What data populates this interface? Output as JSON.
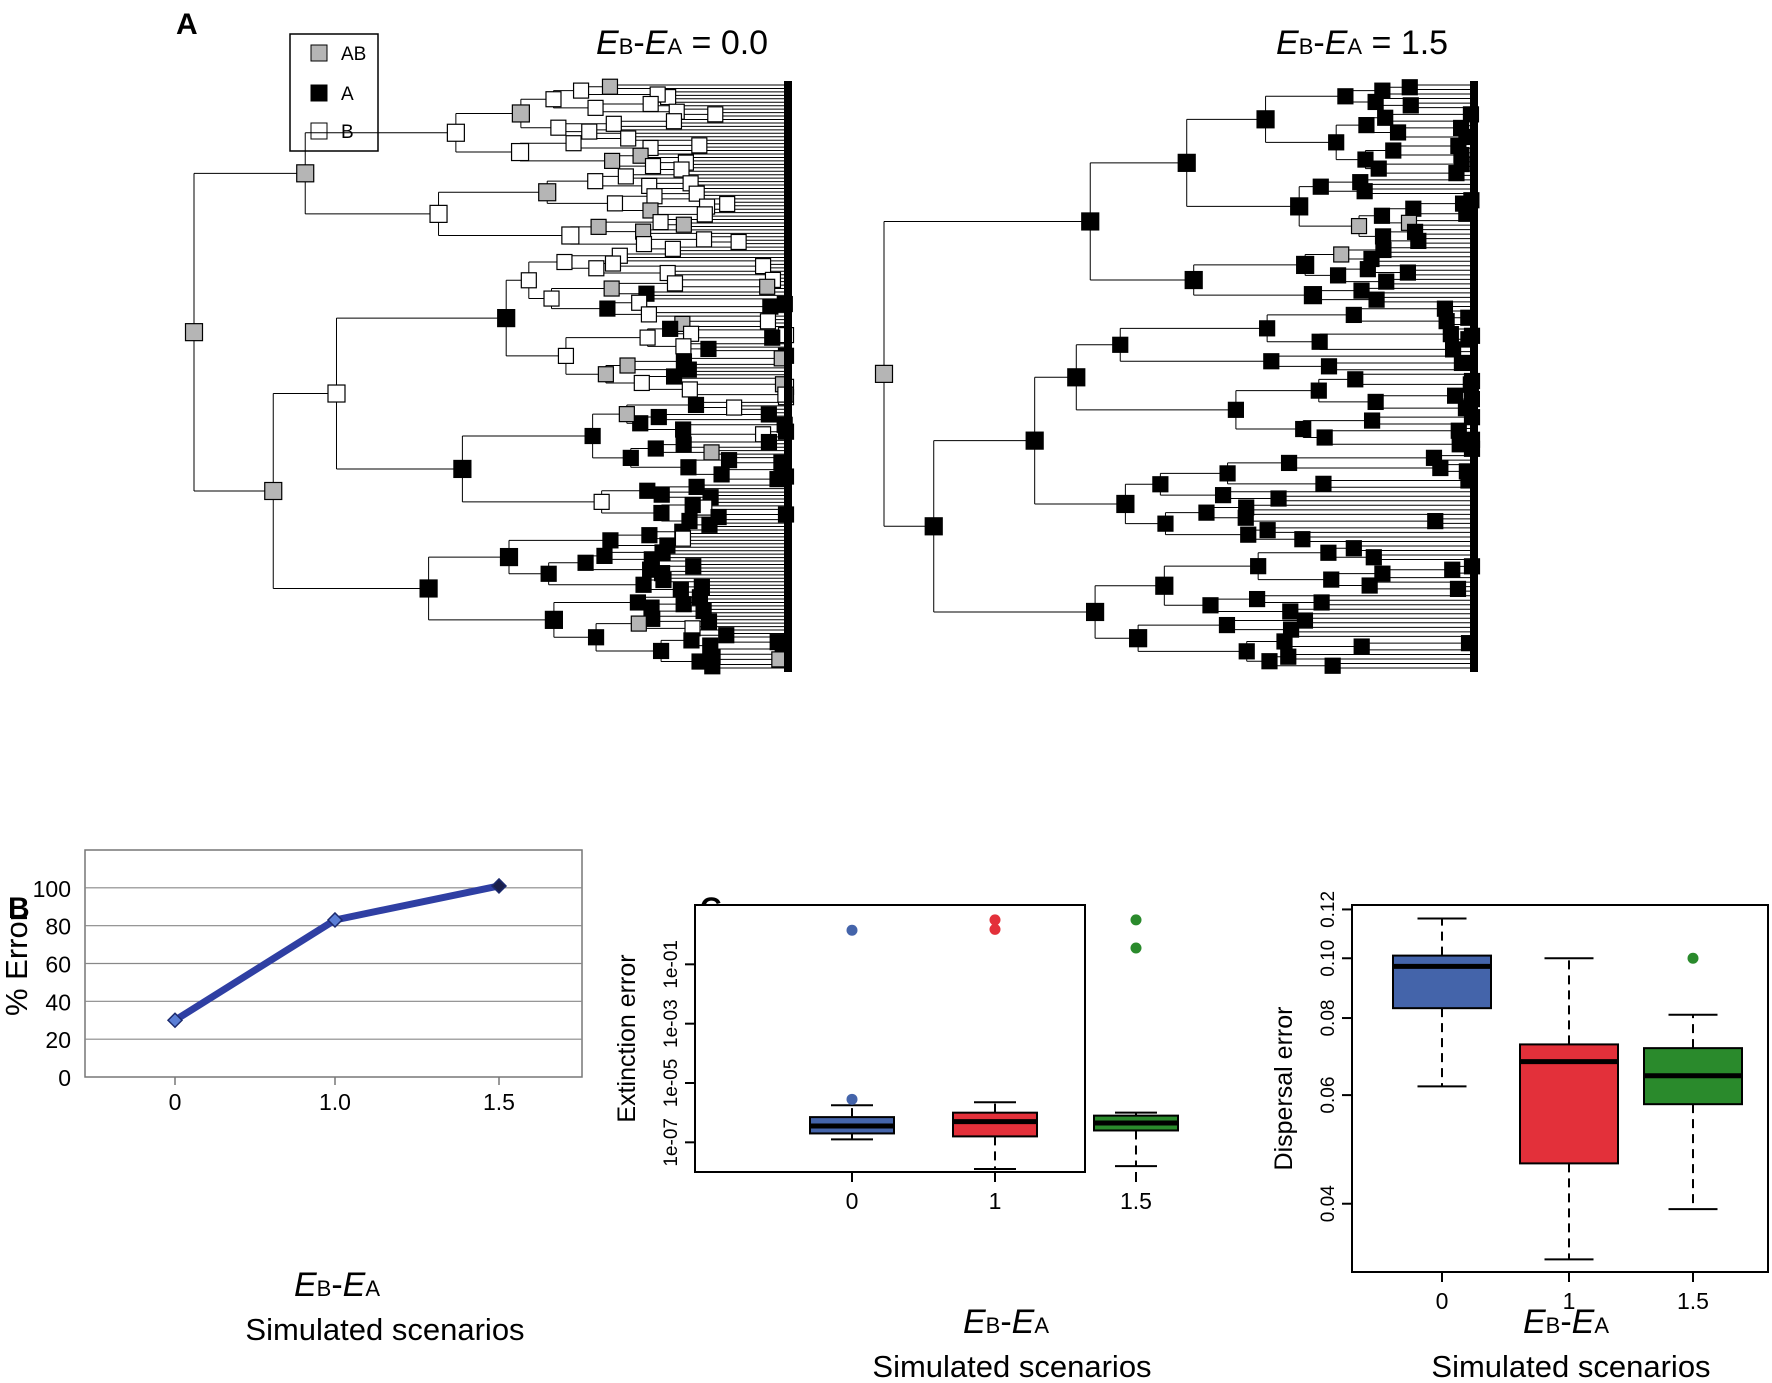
{
  "panels": {
    "A": {
      "label": "A",
      "legend": [
        {
          "label": "AB",
          "state": "AB",
          "color": "#b5b5b5"
        },
        {
          "label": "A",
          "state": "A",
          "color": "#000000"
        },
        {
          "label": "B",
          "state": "B",
          "color": "#ffffff"
        }
      ],
      "trees": [
        {
          "title_main_1": "E",
          "title_sub_1": "B",
          "title_dash": "-",
          "title_main_2": "E",
          "title_sub_2": "A",
          "title_value": " = 0.0"
        },
        {
          "title_main_1": "E",
          "title_sub_1": "B",
          "title_dash": "-",
          "title_main_2": "E",
          "title_sub_2": "A",
          "title_value": " = 1.5"
        }
      ]
    },
    "B": {
      "label": "B"
    },
    "C": {
      "label": "C"
    }
  },
  "chart_data": [
    {
      "type": "line",
      "panel": "B",
      "categories": [
        "0",
        "1.0",
        "1.5"
      ],
      "values": [
        30,
        83,
        101
      ],
      "ylabel": "% Error",
      "yticks": [
        "0",
        "20",
        "40",
        "60",
        "80",
        "100"
      ],
      "ylim": [
        0,
        120
      ],
      "grid": true,
      "xlabel_main_1": "E",
      "xlabel_sub_1": "B",
      "xlabel_dash": "-",
      "xlabel_main_2": "E",
      "xlabel_sub_2": "A",
      "xlabel2": "Simulated scenarios",
      "color": "#2f3fa3",
      "marker_color": "#5b7fd6"
    },
    {
      "type": "box",
      "panel": "C-left",
      "scale": "log10",
      "ylabel": "Extinction error",
      "yticks": [
        "1e-07",
        "1e-05",
        "1e-03",
        "1e-01"
      ],
      "ytick_values": [
        -7,
        -5,
        -3,
        -1
      ],
      "ylim_log10": [
        -8.0,
        1.0
      ],
      "categories": [
        "0",
        "1",
        "1.5"
      ],
      "boxes": [
        {
          "name": "0",
          "color": "#4464aa",
          "whisker_low": -6.9,
          "q1": -6.7,
          "median": -6.45,
          "q3": -6.15,
          "whisker_high": -5.75,
          "outliers": [
            0.15,
            -5.55
          ],
          "outlier_color": "#4464aa"
        },
        {
          "name": "1",
          "color": "#e3303a",
          "whisker_low": -7.9,
          "q1": -6.8,
          "median": -6.3,
          "q3": -6.0,
          "whisker_high": -5.65,
          "outliers": [
            0.5,
            0.18
          ],
          "outlier_color": "#e3303a"
        },
        {
          "name": "1.5",
          "color": "#2a8a2c",
          "whisker_low": -7.8,
          "q1": -6.6,
          "median": -6.35,
          "q3": -6.1,
          "whisker_high": -6.0,
          "outliers": [
            0.5,
            -0.45
          ],
          "outlier_color": "#2a8a2c"
        }
      ],
      "xlabel_main_1": "E",
      "xlabel_sub_1": "B",
      "xlabel_dash": "-",
      "xlabel_main_2": "E",
      "xlabel_sub_2": "A",
      "xlabel2": "Simulated scenarios"
    },
    {
      "type": "box",
      "panel": "C-right",
      "scale": "log",
      "ylabel": "Dispersal error",
      "yticks": [
        "0.04",
        "0.06",
        "0.08",
        "0.10",
        "0.12"
      ],
      "ytick_values": [
        0.04,
        0.06,
        0.08,
        0.1,
        0.12
      ],
      "ylim": [
        0.031,
        0.122
      ],
      "categories": [
        "0",
        "1",
        "1.5"
      ],
      "boxes": [
        {
          "name": "0",
          "color": "#4464aa",
          "whisker_low": 0.062,
          "q1": 0.083,
          "median": 0.097,
          "q3": 0.101,
          "whisker_high": 0.116,
          "outliers": []
        },
        {
          "name": "1",
          "color": "#e3303a",
          "whisker_low": 0.0325,
          "q1": 0.0465,
          "median": 0.068,
          "q3": 0.0725,
          "whisker_high": 0.1,
          "outliers": []
        },
        {
          "name": "1.5",
          "color": "#2a8a2c",
          "whisker_low": 0.0392,
          "q1": 0.058,
          "median": 0.0645,
          "q3": 0.0715,
          "whisker_high": 0.081,
          "outliers": [
            0.1
          ],
          "outlier_color": "#2a8a2c"
        }
      ],
      "xlabel_main_1": "E",
      "xlabel_sub_1": "B",
      "xlabel_dash": "-",
      "xlabel_main_2": "E",
      "xlabel_sub_2": "A",
      "xlabel2": "Simulated scenarios"
    }
  ]
}
